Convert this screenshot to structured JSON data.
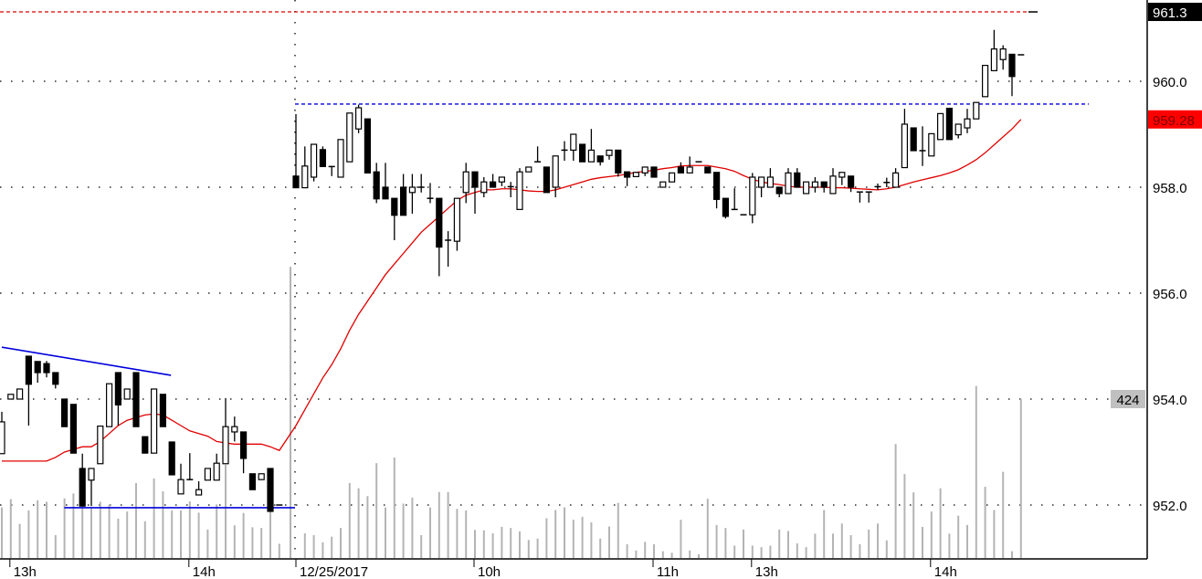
{
  "chart_data": {
    "type": "candlestick",
    "title": "",
    "xlabel": "",
    "ylabel": "",
    "ylim": [
      950.3,
      961.5
    ],
    "grid": true,
    "legend": "none",
    "session_break_index": 32,
    "y_ticks": [
      {
        "value": 960.0,
        "label": "960.0"
      },
      {
        "value": 958.0,
        "label": "958.0"
      },
      {
        "value": 956.0,
        "label": "956.0"
      },
      {
        "value": 954.0,
        "label": "954.0"
      },
      {
        "value": 952.0,
        "label": "952.0"
      }
    ],
    "x_ticks": [
      {
        "index": 1,
        "label": "13h"
      },
      {
        "index": 21,
        "label": "14h"
      },
      {
        "index": 32,
        "label": "12/25/2017"
      },
      {
        "index": 52,
        "label": "10h"
      },
      {
        "index": 72,
        "label": "11h"
      },
      {
        "index": 83,
        "label": "13h"
      },
      {
        "index": 103,
        "label": "14h"
      }
    ],
    "ohlc": [
      [
        952.97,
        953.76,
        952.97,
        953.57
      ],
      [
        954.0,
        954.09,
        954.0,
        954.09
      ],
      [
        954.0,
        954.19,
        954.0,
        954.19
      ],
      [
        954.81,
        954.81,
        953.5,
        954.28
      ],
      [
        954.71,
        954.71,
        954.31,
        954.5
      ],
      [
        954.67,
        954.72,
        954.41,
        954.5
      ],
      [
        954.5,
        954.5,
        954.2,
        954.28
      ],
      [
        954.0,
        954.0,
        953.48,
        953.48
      ],
      [
        953.9,
        953.9,
        952.98,
        952.98
      ],
      [
        952.69,
        952.97,
        951.98,
        951.98
      ],
      [
        952.47,
        952.69,
        951.98,
        952.69
      ],
      [
        952.78,
        953.49,
        952.78,
        953.49
      ],
      [
        953.48,
        954.29,
        953.48,
        954.29
      ],
      [
        954.5,
        954.5,
        953.5,
        953.89
      ],
      [
        954.0,
        954.19,
        954.0,
        954.19
      ],
      [
        954.5,
        954.5,
        953.48,
        953.48
      ],
      [
        953.29,
        953.29,
        952.98,
        952.98
      ],
      [
        952.98,
        954.19,
        952.98,
        954.19
      ],
      [
        954.09,
        954.09,
        953.48,
        953.48
      ],
      [
        953.19,
        953.19,
        952.57,
        952.57
      ],
      [
        952.21,
        952.78,
        952.21,
        952.48
      ],
      [
        952.48,
        952.98,
        952.48,
        952.48
      ],
      [
        952.19,
        952.45,
        952.19,
        952.29
      ],
      [
        952.47,
        952.69,
        952.47,
        952.69
      ],
      [
        952.47,
        952.97,
        952.47,
        952.79
      ],
      [
        952.78,
        954.02,
        952.78,
        953.48
      ],
      [
        953.38,
        953.67,
        953.2,
        953.48
      ],
      [
        953.38,
        953.38,
        952.6,
        952.88
      ],
      [
        952.59,
        952.59,
        952.29,
        952.29
      ],
      [
        952.48,
        952.59,
        952.48,
        952.59
      ],
      [
        952.69,
        952.69,
        951.88,
        951.88
      ],
      [
        952.0,
        952.0,
        952.0,
        952.0
      ],
      [
        958.21,
        959.38,
        957.99,
        957.99
      ],
      [
        957.99,
        958.77,
        957.99,
        958.4
      ],
      [
        958.19,
        958.81,
        958.11,
        958.81
      ],
      [
        958.71,
        958.77,
        958.39,
        958.39
      ],
      [
        958.39,
        958.39,
        958.21,
        958.39
      ],
      [
        958.19,
        958.9,
        958.19,
        958.9
      ],
      [
        958.48,
        959.4,
        958.48,
        959.4
      ],
      [
        959.1,
        959.56,
        959.02,
        959.5
      ],
      [
        959.29,
        959.29,
        958.27,
        958.27
      ],
      [
        958.29,
        958.46,
        957.7,
        957.78
      ],
      [
        958.0,
        958.46,
        957.78,
        957.78
      ],
      [
        957.79,
        957.79,
        957.0,
        957.47
      ],
      [
        958.0,
        958.25,
        957.47,
        957.47
      ],
      [
        957.9,
        958.25,
        957.5,
        958.0
      ],
      [
        958.0,
        958.25,
        957.9,
        958.0
      ],
      [
        957.79,
        958.08,
        957.7,
        957.79
      ],
      [
        957.79,
        957.79,
        956.32,
        956.87
      ],
      [
        957.0,
        957.17,
        956.5,
        957.0
      ],
      [
        956.98,
        957.79,
        956.8,
        957.79
      ],
      [
        957.9,
        958.46,
        957.7,
        958.29
      ],
      [
        958.29,
        958.29,
        957.5,
        958.0
      ],
      [
        957.9,
        958.19,
        957.81,
        958.1
      ],
      [
        958.1,
        958.25,
        958.0,
        958.0
      ],
      [
        958.1,
        958.19,
        958.02,
        958.19
      ],
      [
        958.01,
        958.1,
        957.81,
        958.01
      ],
      [
        957.58,
        958.36,
        957.58,
        958.29
      ],
      [
        958.29,
        958.38,
        958.29,
        958.38
      ],
      [
        958.48,
        958.77,
        958.48,
        958.48
      ],
      [
        958.38,
        958.38,
        957.9,
        957.9
      ],
      [
        958.0,
        958.59,
        957.81,
        958.59
      ],
      [
        958.7,
        958.87,
        958.5,
        958.7
      ],
      [
        958.7,
        959.0,
        958.5,
        959.0
      ],
      [
        958.81,
        958.81,
        958.48,
        958.48
      ],
      [
        958.48,
        959.1,
        958.48,
        958.7
      ],
      [
        958.59,
        958.59,
        958.41,
        958.48
      ],
      [
        958.6,
        958.7,
        958.52,
        958.7
      ],
      [
        958.7,
        958.7,
        958.2,
        958.27
      ],
      [
        958.29,
        958.29,
        958.02,
        958.19
      ],
      [
        958.2,
        958.28,
        958.2,
        958.28
      ],
      [
        958.27,
        958.38,
        958.21,
        958.38
      ],
      [
        958.38,
        958.38,
        958.19,
        958.19
      ],
      [
        958.0,
        958.1,
        958.0,
        958.1
      ],
      [
        958.1,
        958.27,
        958.1,
        958.27
      ],
      [
        958.38,
        958.47,
        958.27,
        958.27
      ],
      [
        958.27,
        958.58,
        958.27,
        958.38
      ],
      [
        958.48,
        958.48,
        958.48,
        958.48
      ],
      [
        958.38,
        958.38,
        958.27,
        958.27
      ],
      [
        958.28,
        958.28,
        957.6,
        957.77
      ],
      [
        957.79,
        957.79,
        957.41,
        957.45
      ],
      [
        957.58,
        957.98,
        957.58,
        957.58
      ],
      [
        957.48,
        957.48,
        957.48,
        957.48
      ],
      [
        957.48,
        958.27,
        957.32,
        958.19
      ],
      [
        958.0,
        958.19,
        957.81,
        958.19
      ],
      [
        958.0,
        958.36,
        958.0,
        958.19
      ],
      [
        958.0,
        958.0,
        957.81,
        957.88
      ],
      [
        957.88,
        958.36,
        957.88,
        958.27
      ],
      [
        958.27,
        958.36,
        958.0,
        958.0
      ],
      [
        957.88,
        958.1,
        957.88,
        958.1
      ],
      [
        958.0,
        958.19,
        957.9,
        958.1
      ],
      [
        958.1,
        958.1,
        957.9,
        958.0
      ],
      [
        957.88,
        958.36,
        957.88,
        958.21
      ],
      [
        958.19,
        958.28,
        958.04,
        958.28
      ],
      [
        958.21,
        958.21,
        957.91,
        958.0
      ],
      [
        957.91,
        957.91,
        957.71,
        957.91
      ],
      [
        957.91,
        957.91,
        957.71,
        957.91
      ],
      [
        958.01,
        958.07,
        957.95,
        958.01
      ],
      [
        958.09,
        958.18,
        958.0,
        958.09
      ],
      [
        958.0,
        958.36,
        958.0,
        958.27
      ],
      [
        958.37,
        959.48,
        958.37,
        959.19
      ],
      [
        959.12,
        959.12,
        958.69,
        958.69
      ],
      [
        958.69,
        959.15,
        958.4,
        958.69
      ],
      [
        958.59,
        959.01,
        958.59,
        959.01
      ],
      [
        958.9,
        959.39,
        958.9,
        959.39
      ],
      [
        959.49,
        959.49,
        958.9,
        958.9
      ],
      [
        958.99,
        959.19,
        958.92,
        959.19
      ],
      [
        959.12,
        959.48,
        959.02,
        959.29
      ],
      [
        959.29,
        959.6,
        959.29,
        959.6
      ],
      [
        959.71,
        960.3,
        959.71,
        960.3
      ],
      [
        960.2,
        960.97,
        960.2,
        960.61
      ],
      [
        960.41,
        960.68,
        960.22,
        960.61
      ],
      [
        960.51,
        960.51,
        959.72,
        960.09
      ],
      [
        960.5,
        960.5,
        960.5,
        960.5
      ]
    ],
    "moving_average": [
      952.83,
      952.83,
      952.83,
      952.83,
      952.83,
      952.83,
      952.9,
      953.0,
      953.05,
      953.1,
      953.1,
      953.2,
      953.35,
      953.5,
      953.6,
      953.65,
      953.7,
      953.72,
      953.7,
      953.6,
      953.5,
      953.4,
      953.35,
      953.3,
      953.2,
      953.17,
      953.15,
      953.15,
      953.15,
      953.15,
      953.1,
      953.03,
      953.5,
      953.8,
      954.1,
      954.4,
      954.65,
      954.95,
      955.3,
      955.6,
      955.85,
      956.1,
      956.35,
      956.55,
      956.75,
      956.95,
      957.15,
      957.3,
      957.45,
      957.6,
      957.75,
      957.85,
      957.9,
      957.95,
      957.95,
      957.97,
      957.97,
      957.95,
      957.93,
      957.92,
      957.92,
      957.95,
      958.0,
      958.05,
      958.1,
      958.15,
      958.18,
      958.2,
      958.22,
      958.25,
      958.28,
      958.3,
      958.32,
      958.35,
      958.37,
      958.4,
      958.41,
      958.41,
      958.41,
      958.38,
      958.35,
      958.3,
      958.22,
      958.15,
      958.1,
      958.07,
      958.05,
      958.02,
      958.0,
      958.0,
      958.0,
      958.0,
      957.99,
      957.99,
      957.98,
      957.97,
      957.96,
      957.95,
      957.97,
      958.0,
      958.05,
      958.1,
      958.14,
      958.18,
      958.22,
      958.27,
      958.33,
      958.42,
      958.52,
      958.65,
      958.8,
      958.95,
      959.1,
      959.28
    ],
    "volume": [
      135,
      157,
      91,
      127,
      154,
      150,
      61,
      159,
      172,
      147,
      135,
      150,
      143,
      105,
      124,
      200,
      98,
      212,
      178,
      127,
      127,
      151,
      121,
      76,
      143,
      249,
      87,
      120,
      82,
      80,
      172,
      38,
      777,
      66,
      61,
      42,
      57,
      80,
      200,
      186,
      165,
      253,
      135,
      268,
      145,
      161,
      61,
      135,
      176,
      176,
      131,
      127,
      75,
      74,
      66,
      83,
      80,
      71,
      48,
      52,
      106,
      128,
      135,
      102,
      110,
      95,
      52,
      84,
      147,
      37,
      20,
      43,
      37,
      18,
      14,
      102,
      20,
      10,
      158,
      88,
      80,
      33,
      76,
      33,
      29,
      33,
      76,
      72,
      39,
      29,
      65,
      128,
      65,
      92,
      61,
      37,
      76,
      92,
      47,
      304,
      224,
      175,
      83,
      124,
      186,
      65,
      113,
      88,
      459,
      190,
      128,
      230,
      18,
      424
    ],
    "volume_scale_ref": 424,
    "price_labels": {
      "high": {
        "value": 961.31,
        "label": "961.3"
      },
      "moving_average": {
        "value": 959.28,
        "label": "959.28"
      },
      "volume": {
        "value": 424,
        "label": "424"
      }
    },
    "annotations": {
      "resistance_level": 959.57,
      "upper_trendline": {
        "from": [
          0,
          954.98
        ],
        "to": [
          19,
          954.45
        ]
      },
      "support_line": {
        "from": [
          8,
          951.95
        ],
        "to": [
          32,
          951.95
        ]
      }
    },
    "colors": {
      "up_candle": "#ffffff",
      "down_candle": "#000000",
      "moving_average": "#e00000",
      "volume": "#b4b4b4",
      "trendline": "#0000dd",
      "high_line": "#dd0000",
      "label_high_bg": "#000000",
      "label_ma_bg": "#ff0000",
      "label_volume_bg": "#c0c0c0"
    }
  }
}
